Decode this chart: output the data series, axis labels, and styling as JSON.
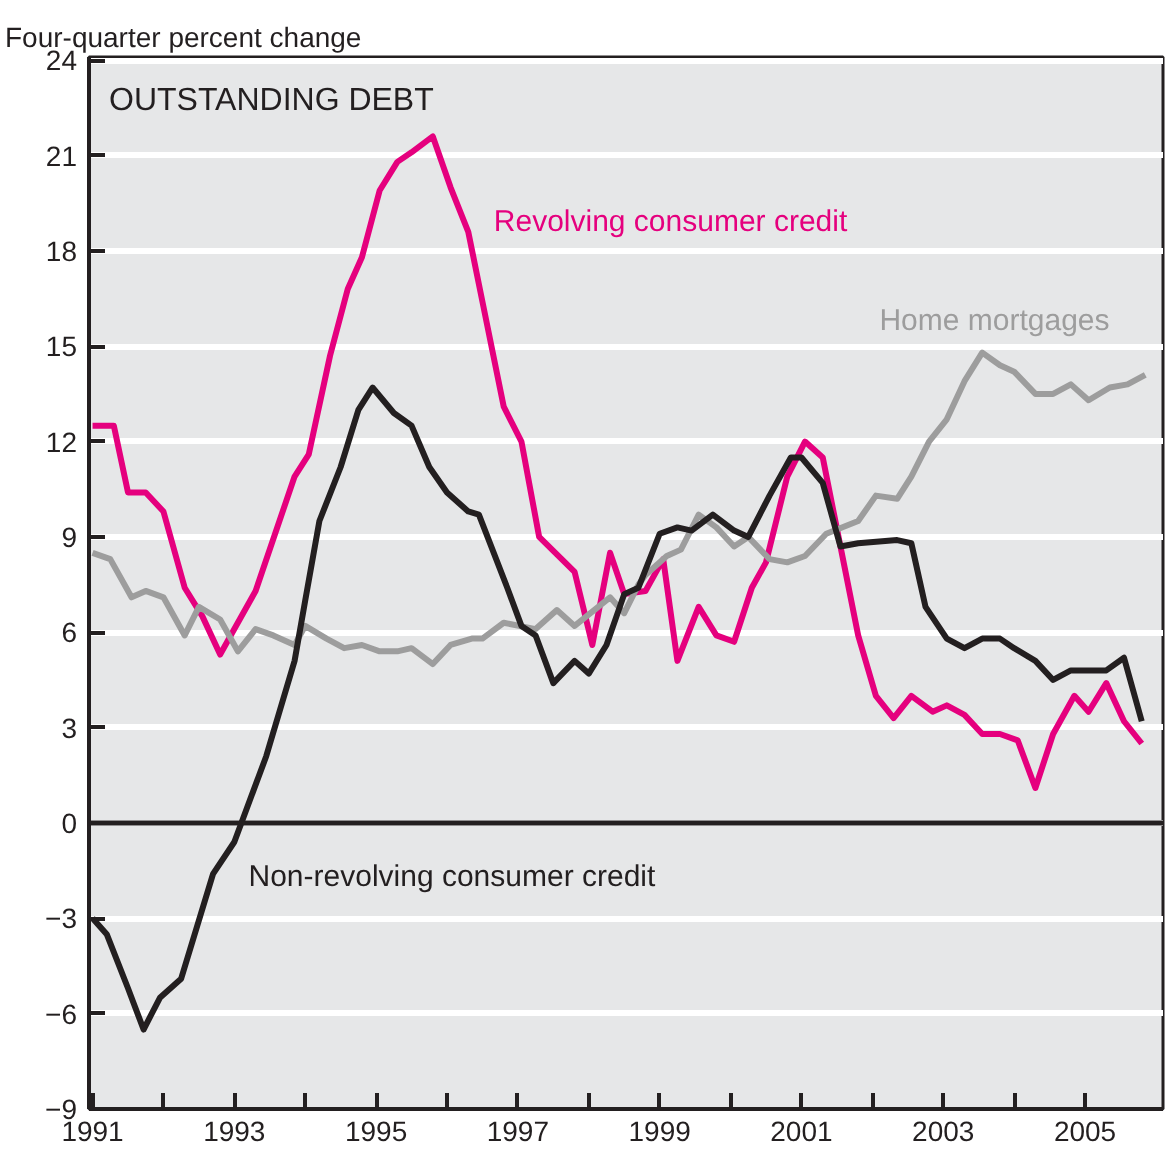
{
  "chart_data": {
    "type": "line",
    "title": "OUTSTANDING DEBT",
    "ylabel": "Four-quarter percent change",
    "xlim": [
      1990.95,
      2006.1
    ],
    "ylim": [
      -9,
      24.1
    ],
    "xticks": [
      {
        "value": 1991,
        "label": "1991"
      },
      {
        "value": 1992,
        "label": null
      },
      {
        "value": 1993,
        "label": "1993"
      },
      {
        "value": 1994,
        "label": null
      },
      {
        "value": 1995,
        "label": "1995"
      },
      {
        "value": 1996,
        "label": null
      },
      {
        "value": 1997,
        "label": "1997"
      },
      {
        "value": 1998,
        "label": null
      },
      {
        "value": 1999,
        "label": "1999"
      },
      {
        "value": 2000,
        "label": null
      },
      {
        "value": 2001,
        "label": "2001"
      },
      {
        "value": 2002,
        "label": null
      },
      {
        "value": 2003,
        "label": "2003"
      },
      {
        "value": 2004,
        "label": null
      },
      {
        "value": 2005,
        "label": "2005"
      }
    ],
    "yticks": [
      {
        "value": -9,
        "label": "−9"
      },
      {
        "value": -6,
        "label": "−6"
      },
      {
        "value": -3,
        "label": "−3"
      },
      0,
      3,
      6,
      9,
      12,
      15,
      18,
      21,
      24
    ],
    "grid": "y",
    "legend": false,
    "marker": "none",
    "line_style": "solid",
    "ref_lines": [
      {
        "axis": "y",
        "value": 0,
        "label": null,
        "color": "#231f20"
      }
    ],
    "series": [
      {
        "name": "Revolving consumer credit",
        "color": "#e5007e",
        "x": [
          1991.0,
          1991.3,
          1991.5,
          1991.75,
          1992.0,
          1992.3,
          1992.55,
          1992.8,
          1993.0,
          1993.3,
          1993.85,
          1994.05,
          1994.35,
          1994.6,
          1994.8,
          1995.05,
          1995.3,
          1995.5,
          1995.8,
          1996.05,
          1996.3,
          1996.5,
          1996.8,
          1997.05,
          1997.3,
          1997.8,
          1998.05,
          1998.3,
          1998.5,
          1998.8,
          1999.05,
          1999.25,
          1999.55,
          1999.8,
          2000.05,
          2000.3,
          2000.5,
          2000.8,
          2001.05,
          2001.3,
          2001.55,
          2001.8,
          2002.05,
          2002.3,
          2002.55,
          2002.85,
          2003.05,
          2003.3,
          2003.55,
          2003.8,
          2004.05,
          2004.3,
          2004.55,
          2004.85,
          2005.05,
          2005.3,
          2005.55,
          2005.8
        ],
        "values": [
          12.5,
          12.5,
          10.4,
          10.4,
          9.8,
          7.4,
          6.5,
          5.3,
          6.1,
          7.3,
          10.9,
          11.6,
          14.7,
          16.8,
          17.8,
          19.9,
          20.8,
          21.1,
          21.6,
          20.0,
          18.6,
          16.4,
          13.1,
          12.0,
          9.0,
          7.9,
          5.6,
          8.5,
          7.2,
          7.3,
          8.3,
          5.1,
          6.8,
          5.9,
          5.7,
          7.4,
          8.2,
          10.9,
          12.0,
          11.5,
          8.7,
          5.9,
          4.0,
          3.3,
          4.0,
          3.5,
          3.7,
          3.4,
          2.8,
          2.8,
          2.6,
          1.1,
          2.8,
          4.0,
          3.5,
          4.4,
          3.2,
          2.5
        ]
      },
      {
        "name": "Home mortgages",
        "color": "#9d9d9d",
        "x": [
          1991.0,
          1991.25,
          1991.55,
          1991.75,
          1992.0,
          1992.3,
          1992.5,
          1992.8,
          1993.05,
          1993.3,
          1993.55,
          1993.85,
          1994.0,
          1994.3,
          1994.55,
          1994.8,
          1995.05,
          1995.3,
          1995.5,
          1995.8,
          1996.05,
          1996.35,
          1996.5,
          1996.8,
          1997.25,
          1997.55,
          1997.8,
          1998.3,
          1998.5,
          1998.7,
          1998.8,
          1999.1,
          1999.3,
          1999.55,
          1999.8,
          2000.05,
          2000.25,
          2000.55,
          2000.8,
          2001.05,
          2001.35,
          2001.8,
          2002.05,
          2002.35,
          2002.55,
          2002.8,
          2003.05,
          2003.3,
          2003.55,
          2003.8,
          2004.0,
          2004.3,
          2004.55,
          2004.8,
          2005.05,
          2005.35,
          2005.6,
          2005.85
        ],
        "values": [
          8.5,
          8.3,
          7.1,
          7.3,
          7.1,
          5.9,
          6.8,
          6.4,
          5.4,
          6.1,
          5.9,
          5.6,
          6.2,
          5.8,
          5.5,
          5.6,
          5.4,
          5.4,
          5.5,
          5.0,
          5.6,
          5.8,
          5.8,
          6.3,
          6.1,
          6.7,
          6.2,
          7.1,
          6.6,
          7.5,
          7.8,
          8.4,
          8.6,
          9.7,
          9.3,
          8.7,
          9.0,
          8.3,
          8.2,
          8.4,
          9.1,
          9.5,
          10.3,
          10.2,
          10.9,
          12.0,
          12.7,
          13.9,
          14.8,
          14.4,
          14.2,
          13.5,
          13.5,
          13.8,
          13.3,
          13.7,
          13.8,
          14.1
        ]
      },
      {
        "name": "Non-revolving consumer credit",
        "color": "#231f20",
        "x": [
          1991.0,
          1991.2,
          1991.5,
          1991.72,
          1991.95,
          1992.25,
          1992.7,
          1993.0,
          1993.45,
          1993.85,
          1994.0,
          1994.2,
          1994.5,
          1994.75,
          1994.95,
          1995.25,
          1995.5,
          1995.75,
          1996.0,
          1996.3,
          1996.45,
          1996.85,
          1997.05,
          1997.25,
          1997.5,
          1997.8,
          1998.0,
          1998.25,
          1998.5,
          1998.7,
          1999.0,
          1999.25,
          1999.45,
          1999.75,
          2000.05,
          2000.25,
          2000.55,
          2000.85,
          2001.0,
          2001.3,
          2001.55,
          2001.8,
          2002.35,
          2002.55,
          2002.75,
          2003.05,
          2003.3,
          2003.55,
          2003.8,
          2004.0,
          2004.3,
          2004.55,
          2004.8,
          2005.3,
          2005.55,
          2005.8
        ],
        "values": [
          -3.0,
          -3.5,
          -5.2,
          -6.5,
          -5.5,
          -4.9,
          -1.6,
          -0.6,
          2.1,
          5.1,
          7.0,
          9.5,
          11.2,
          13.0,
          13.7,
          12.9,
          12.5,
          11.2,
          10.4,
          9.8,
          9.7,
          7.4,
          6.2,
          5.9,
          4.4,
          5.1,
          4.7,
          5.6,
          7.2,
          7.4,
          9.1,
          9.3,
          9.2,
          9.7,
          9.2,
          9.0,
          10.3,
          11.5,
          11.5,
          10.7,
          8.7,
          8.8,
          8.9,
          8.8,
          6.8,
          5.8,
          5.5,
          5.8,
          5.8,
          5.5,
          5.1,
          4.5,
          4.8,
          4.8,
          5.2,
          3.2
        ]
      }
    ]
  }
}
